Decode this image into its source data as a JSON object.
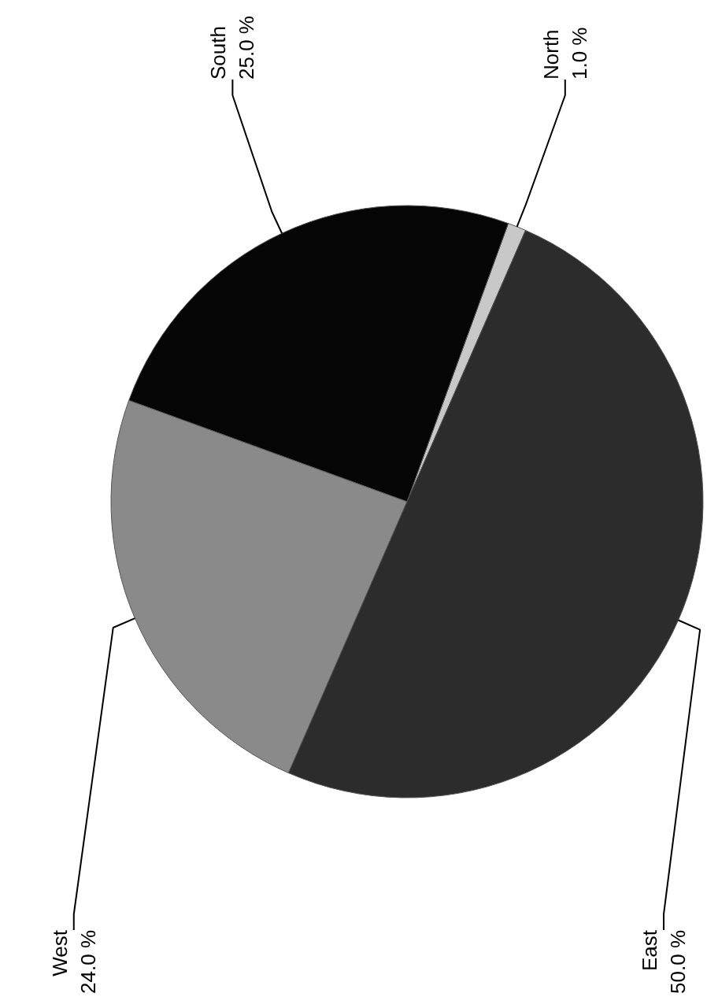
{
  "chart_data": {
    "type": "pie",
    "categories": [
      "North",
      "South",
      "West",
      "East"
    ],
    "values": [
      1,
      25,
      24,
      50
    ],
    "value_labels": [
      "1.0 %",
      "25.0 %",
      "24.0 %",
      "50.0 %"
    ],
    "colors": [
      "#c8c8c8",
      "#050505",
      "#8a8a8a",
      "#2c2c2c"
    ]
  }
}
